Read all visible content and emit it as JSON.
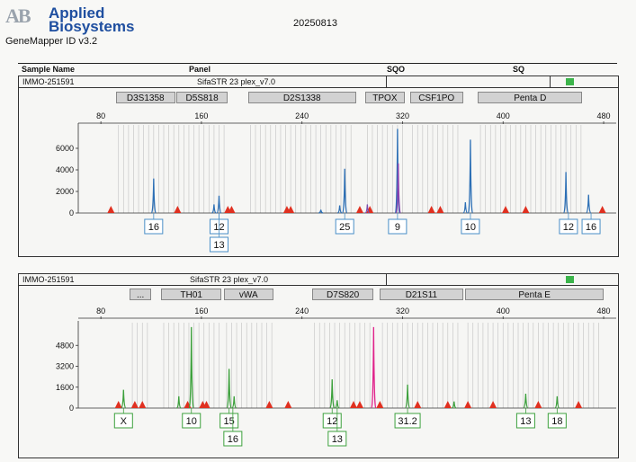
{
  "header": {
    "brand_mark": "AB",
    "brand_line1": "Applied",
    "brand_line2": "Biosystems",
    "run_date": "20250813",
    "software": "GeneMapper ID v3.2"
  },
  "table_header": {
    "sample_name": "Sample Name",
    "panel": "Panel",
    "sqo": "SQO",
    "sq": "SQ"
  },
  "panel1": {
    "sample": "IMMO-251591",
    "panel_name": "SifaSTR 23 plex_v7.0"
  },
  "panel2": {
    "sample": "IMMO-251591",
    "panel_name": "SifaSTR 23 plex_v7.0"
  },
  "chart_data": [
    {
      "type": "line",
      "dye": "blue",
      "xlim": [
        62,
        490
      ],
      "ylim": [
        0,
        8000
      ],
      "x_ticks": [
        80,
        160,
        240,
        320,
        400,
        480
      ],
      "y_ticks": [
        0,
        2000,
        4000,
        6000
      ],
      "markers": [
        {
          "label": "D3S1358",
          "start": 92,
          "end": 139
        },
        {
          "label": "D5S818",
          "start": 140,
          "end": 181
        },
        {
          "label": "D2S1338",
          "start": 197,
          "end": 283
        },
        {
          "label": "TPOX",
          "start": 290,
          "end": 322
        },
        {
          "label": "CSF1PO",
          "start": 326,
          "end": 368
        },
        {
          "label": "Penta D",
          "start": 380,
          "end": 463
        }
      ],
      "peaks": [
        {
          "x": 122,
          "h": 3200,
          "color": "#2c6fb5"
        },
        {
          "x": 170,
          "h": 800,
          "color": "#2c6fb5"
        },
        {
          "x": 174,
          "h": 1600,
          "color": "#2c6fb5"
        },
        {
          "x": 255,
          "h": 300,
          "color": "#2c6fb5"
        },
        {
          "x": 270,
          "h": 700,
          "color": "#2c6fb5"
        },
        {
          "x": 274,
          "h": 4100,
          "color": "#2c6fb5"
        },
        {
          "x": 292,
          "h": 800,
          "color": "#7a4fb0"
        },
        {
          "x": 316,
          "h": 7800,
          "color": "#2c6fb5"
        },
        {
          "x": 316.6,
          "h": 4600,
          "color": "#8a3fb0"
        },
        {
          "x": 370,
          "h": 1000,
          "color": "#2c6fb5"
        },
        {
          "x": 374,
          "h": 6800,
          "color": "#2c6fb5"
        },
        {
          "x": 450,
          "h": 3800,
          "color": "#2c6fb5"
        },
        {
          "x": 468,
          "h": 1700,
          "color": "#2c6fb5"
        }
      ],
      "red_marks": [
        88,
        141,
        181,
        184,
        228,
        231,
        286,
        294,
        343,
        350,
        402,
        418,
        479
      ],
      "alleles": [
        {
          "x": 122,
          "label": "16"
        },
        {
          "x": 174,
          "label": "12"
        },
        {
          "x": 174,
          "label": "13",
          "row": 2
        },
        {
          "x": 274,
          "label": "25"
        },
        {
          "x": 316,
          "label": "9"
        },
        {
          "x": 374,
          "label": "10"
        },
        {
          "x": 452,
          "label": "12"
        },
        {
          "x": 470,
          "label": "16"
        }
      ]
    },
    {
      "type": "line",
      "dye": "green",
      "xlim": [
        62,
        490
      ],
      "ylim": [
        0,
        6400
      ],
      "x_ticks": [
        80,
        160,
        240,
        320,
        400,
        480
      ],
      "y_ticks": [
        0,
        1600,
        3200,
        4800
      ],
      "markers": [
        {
          "label": "...",
          "start": 103,
          "end": 120
        },
        {
          "label": "TH01",
          "start": 128,
          "end": 176
        },
        {
          "label": "vWA",
          "start": 178,
          "end": 217
        },
        {
          "label": "D7S820",
          "start": 248,
          "end": 297
        },
        {
          "label": "D21S11",
          "start": 302,
          "end": 368
        },
        {
          "label": "Penta E",
          "start": 370,
          "end": 480
        }
      ],
      "peaks": [
        {
          "x": 98,
          "h": 1400,
          "color": "#3ca03c"
        },
        {
          "x": 142,
          "h": 900,
          "color": "#3ca03c"
        },
        {
          "x": 152,
          "h": 6200,
          "color": "#3ca03c"
        },
        {
          "x": 182,
          "h": 3000,
          "color": "#3ca03c"
        },
        {
          "x": 186,
          "h": 900,
          "color": "#3ca03c"
        },
        {
          "x": 264,
          "h": 2200,
          "color": "#3ca03c"
        },
        {
          "x": 268,
          "h": 600,
          "color": "#3ca03c"
        },
        {
          "x": 297,
          "h": 6200,
          "color": "#e0208a"
        },
        {
          "x": 324,
          "h": 1800,
          "color": "#3ca03c"
        },
        {
          "x": 361,
          "h": 500,
          "color": "#3ca03c"
        },
        {
          "x": 418,
          "h": 1100,
          "color": "#3ca03c"
        },
        {
          "x": 443,
          "h": 900,
          "color": "#3ca03c"
        }
      ],
      "red_marks": [
        94,
        107,
        113,
        149,
        161,
        164,
        214,
        229,
        281,
        286,
        302,
        332,
        356,
        372,
        392,
        428,
        460
      ],
      "alleles": [
        {
          "x": 98,
          "label": "X"
        },
        {
          "x": 152,
          "label": "10"
        },
        {
          "x": 182,
          "label": "15"
        },
        {
          "x": 185,
          "label": "16",
          "row": 2
        },
        {
          "x": 264,
          "label": "12"
        },
        {
          "x": 268,
          "label": "13",
          "row": 2
        },
        {
          "x": 324,
          "label": "31.2"
        },
        {
          "x": 418,
          "label": "13"
        },
        {
          "x": 443,
          "label": "18"
        }
      ]
    }
  ],
  "colors": {
    "allele_box_blue": "#4a8fc7",
    "allele_box_green": "#3ca03c",
    "status_green": "#3cb44b",
    "threshold_red": "#e03020"
  }
}
